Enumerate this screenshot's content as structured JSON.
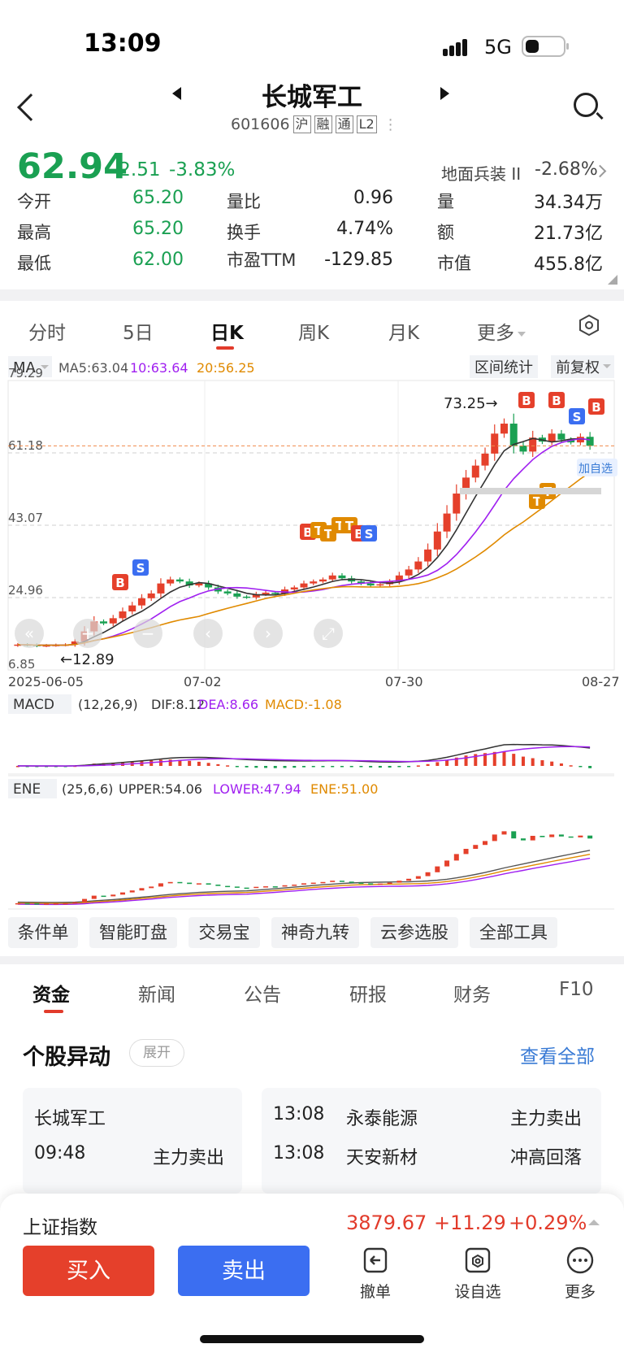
{
  "status_bar": {
    "time": "13:09",
    "network": "5G"
  },
  "header": {
    "name": "长城军工",
    "code": "601606",
    "tags": [
      "沪",
      "融",
      "通",
      "L2"
    ]
  },
  "quote": {
    "price": "62.94",
    "change": "-2.51",
    "change_pct": "-3.83%",
    "sector_name": "地面兵装 II",
    "sector_pct": "-2.68%",
    "stats": [
      {
        "label": "今开",
        "value": "65.20",
        "color": "green"
      },
      {
        "label": "量比",
        "value": "0.96",
        "color": "normal"
      },
      {
        "label": "量",
        "value": "34.34万",
        "color": "normal"
      },
      {
        "label": "最高",
        "value": "65.20",
        "color": "green"
      },
      {
        "label": "换手",
        "value": "4.74%",
        "color": "normal"
      },
      {
        "label": "额",
        "value": "21.73亿",
        "color": "normal"
      },
      {
        "label": "最低",
        "value": "62.00",
        "color": "green"
      },
      {
        "label": "市盈TTM",
        "value": "-129.85",
        "color": "normal"
      },
      {
        "label": "市值",
        "value": "455.8亿",
        "color": "normal"
      }
    ]
  },
  "period_tabs": [
    "分时",
    "5日",
    "日K",
    "周K",
    "月K",
    "更多"
  ],
  "period_active": "日K",
  "kline": {
    "ma_label": "MA",
    "ma5": "MA5:63.04",
    "ma10": "10:63.64",
    "ma20": "20:56.25",
    "range_stats": "区间统计",
    "adjust": "前复权",
    "y_ticks": [
      "79.29",
      "61.18",
      "43.07",
      "24.96",
      "6.85"
    ],
    "x_ticks": [
      "2025-06-05",
      "07-02",
      "07-30",
      "08-27"
    ],
    "high_label": "73.25→",
    "low_label": "←12.89",
    "add_watch": "加自选",
    "markers": [
      "B",
      "S",
      "T"
    ]
  },
  "macd": {
    "name": "MACD",
    "params": "(12,26,9)",
    "dif": "DIF:8.12",
    "dea": "DEA:8.66",
    "macd": "MACD:-1.08"
  },
  "ene": {
    "name": "ENE",
    "params": "(25,6,6)",
    "upper": "UPPER:54.06",
    "lower": "LOWER:47.94",
    "ene": "ENE:51.00"
  },
  "chips": [
    "条件单",
    "智能盯盘",
    "交易宝",
    "神奇九转",
    "云参选股",
    "全部工具"
  ],
  "info_tabs": [
    "资金",
    "新闻",
    "公告",
    "研报",
    "财务",
    "F10"
  ],
  "abnormal": {
    "title": "个股异动",
    "expand": "展开",
    "view_all": "查看全部",
    "left": {
      "name": "长城军工",
      "time": "09:48",
      "event": "主力卖出"
    },
    "right": [
      {
        "time": "13:08",
        "name": "永泰能源",
        "event": "主力卖出"
      },
      {
        "time": "13:08",
        "name": "天安新材",
        "event": "冲高回落"
      }
    ]
  },
  "index_bar": {
    "name": "上证指数",
    "value": "3879.67",
    "change": "+11.29",
    "pct": "+0.29%"
  },
  "actions": {
    "buy": "买入",
    "sell": "卖出",
    "cancel": "撤单",
    "set_watch": "设自选",
    "more": "更多"
  },
  "colors": {
    "up": "#e5402b",
    "down": "#1aa052",
    "accent_blue": "#3b6ef1",
    "ma10_purple": "#a020f0",
    "ma20_orange": "#e08a00"
  },
  "chart_data": {
    "type": "candlestick",
    "x_range": [
      "2025-06-05",
      "08-27"
    ],
    "ylim": [
      6.85,
      79.29
    ],
    "close_approx": [
      13.2,
      13.1,
      12.9,
      13.0,
      13.1,
      13.2,
      14.0,
      16.5,
      19.0,
      18.5,
      19.8,
      21.5,
      23.0,
      24.8,
      26.0,
      28.5,
      29.5,
      29.0,
      28.0,
      28.5,
      27.5,
      26.5,
      26.0,
      25.2,
      25.0,
      25.8,
      26.2,
      26.0,
      27.0,
      27.5,
      28.5,
      29.0,
      29.5,
      30.5,
      29.8,
      29.0,
      28.5,
      28.0,
      28.3,
      29.0,
      30.5,
      32.0,
      34.0,
      37.0,
      41.5,
      46.0,
      51.0,
      55.0,
      58.0,
      61.0,
      66.0,
      68.5,
      63.0,
      61.5,
      65.0,
      64.0,
      66.0,
      64.5,
      63.8,
      65.2,
      62.94
    ]
  }
}
